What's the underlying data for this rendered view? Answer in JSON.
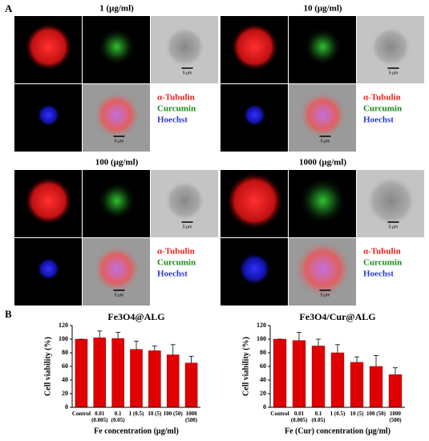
{
  "figure": {
    "panel_a_label": "A",
    "panel_b_label": "B",
    "scale_bar": "5 μm",
    "conditions": [
      "1 (μg/ml)",
      "10 (μg/ml)",
      "100 (μg/ml)",
      "1000 (μg/ml)"
    ],
    "legend": [
      {
        "text": "α-Tubulin",
        "color": "#e8201c"
      },
      {
        "text": "Curcumin",
        "color": "#1a8a1a"
      },
      {
        "text": "Hoechst",
        "color": "#2a3ad0"
      }
    ]
  },
  "chart_data": [
    {
      "type": "bar",
      "title": "Fe3O4@ALG",
      "ylabel": "Cell viability (%)",
      "xlabel": "Fe concentration (μg/ml)",
      "categories": [
        "Control",
        "0.01 (0.005)",
        "0.1 (0.05)",
        "1 (0.5)",
        "10 (5)",
        "100 (50)",
        "1000 (500)"
      ],
      "values": [
        100,
        102,
        101,
        85,
        83,
        77,
        65
      ],
      "errors": [
        0,
        10,
        9,
        12,
        7,
        15,
        10
      ],
      "color": "#e00000",
      "ylim": [
        0,
        120
      ],
      "yticks": [
        0,
        20,
        40,
        60,
        80,
        100,
        120
      ]
    },
    {
      "type": "bar",
      "title": "Fe3O4/Cur@ALG",
      "ylabel": "Cell viability (%)",
      "xlabel": "Fe (Cur) concentration (μg/ml)",
      "categories": [
        "Control",
        "0.01 (0.005)",
        "0.1 (0.05)",
        "1 (0.5)",
        "10 (5)",
        "100 (50)",
        "1000 (500)"
      ],
      "values": [
        100,
        98,
        90,
        80,
        66,
        60,
        48
      ],
      "errors": [
        0,
        12,
        10,
        12,
        8,
        16,
        10
      ],
      "color": "#e00000",
      "ylim": [
        0,
        120
      ],
      "yticks": [
        0,
        20,
        40,
        60,
        80,
        100,
        120
      ]
    }
  ]
}
